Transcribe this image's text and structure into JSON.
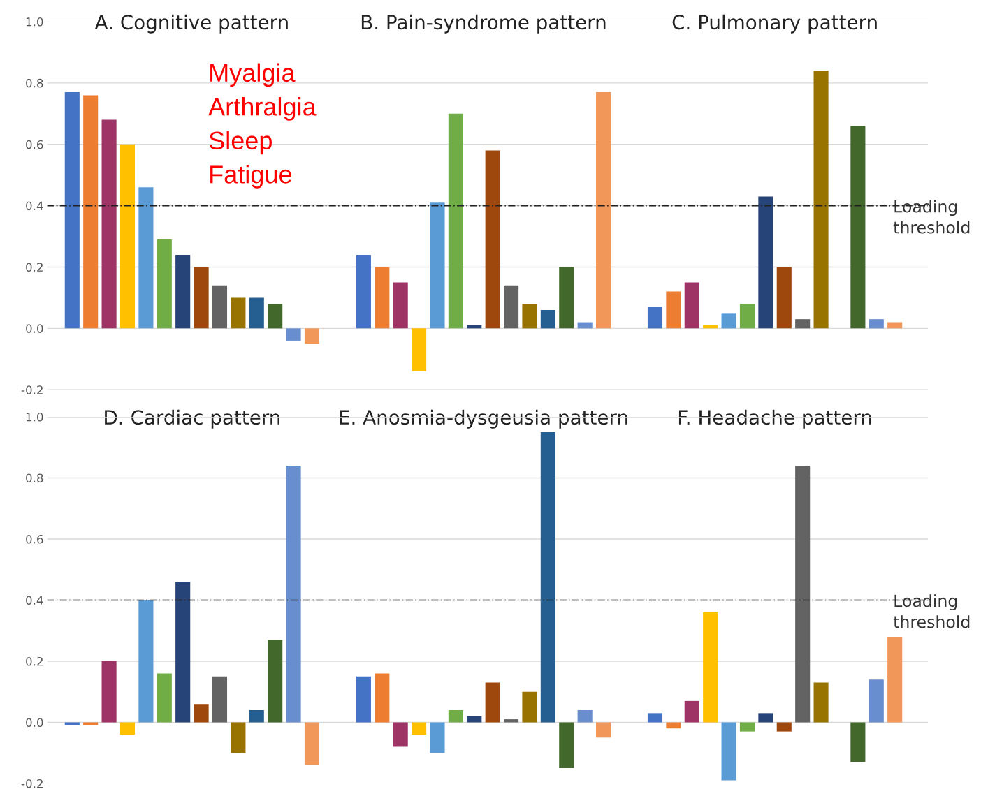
{
  "chart_data": [
    {
      "type": "bar",
      "categories": [
        "A. Cognitive pattern",
        "B. Pain-syndrome pattern",
        "C. Pulmonary pattern"
      ],
      "series": [
        {
          "color": "#4472c4",
          "values": [
            0.77,
            0.24,
            0.07
          ]
        },
        {
          "color": "#ed7d31",
          "values": [
            0.76,
            0.2,
            0.12
          ]
        },
        {
          "color": "#9e3366",
          "values": [
            0.68,
            0.15,
            0.15
          ]
        },
        {
          "color": "#ffc000",
          "values": [
            0.6,
            -0.14,
            0.01
          ]
        },
        {
          "color": "#5b9bd5",
          "values": [
            0.46,
            0.41,
            0.05
          ]
        },
        {
          "color": "#70ad47",
          "values": [
            0.29,
            0.7,
            0.08
          ]
        },
        {
          "color": "#264478",
          "values": [
            0.24,
            0.01,
            0.43
          ]
        },
        {
          "color": "#9e480e",
          "values": [
            0.2,
            0.58,
            0.2
          ]
        },
        {
          "color": "#636363",
          "values": [
            0.14,
            0.14,
            0.03
          ]
        },
        {
          "color": "#997300",
          "values": [
            0.1,
            0.08,
            0.84
          ]
        },
        {
          "color": "#255e91",
          "values": [
            0.1,
            0.06,
            0.0
          ]
        },
        {
          "color": "#43682b",
          "values": [
            0.08,
            0.2,
            0.66
          ]
        },
        {
          "color": "#698ed0",
          "values": [
            -0.04,
            0.02,
            0.03
          ]
        },
        {
          "color": "#f1975a",
          "values": [
            -0.05,
            0.77,
            0.02
          ]
        }
      ],
      "ylim": [
        -0.2,
        1.0
      ],
      "yticks": [
        {
          "value": -0.2,
          "label": "-0.2"
        },
        {
          "value": 0,
          "label": "0.0"
        },
        {
          "value": 0.2,
          "label": "0.2"
        },
        {
          "value": 0.4,
          "label": "0.4"
        },
        {
          "value": 0.6,
          "label": "0.6"
        },
        {
          "value": 0.8,
          "label": "0.8"
        },
        {
          "value": 1.0,
          "label": "1.0"
        }
      ],
      "grid": "y",
      "ref_lines": [
        {
          "axis": "y",
          "value": 0.4,
          "label": "Loading threshold",
          "color": "#222222",
          "line_style": "dashed"
        }
      ],
      "annotations": [
        "Myalgia",
        "Arthralgia",
        "Sleep",
        "Fatigue"
      ]
    },
    {
      "type": "bar",
      "categories": [
        "D. Cardiac pattern",
        "E. Anosmia-dysgeusia pattern",
        "F. Headache pattern"
      ],
      "series": [
        {
          "color": "#4472c4",
          "values": [
            -0.01,
            0.15,
            0.03
          ]
        },
        {
          "color": "#ed7d31",
          "values": [
            -0.01,
            0.16,
            -0.02
          ]
        },
        {
          "color": "#9e3366",
          "values": [
            0.2,
            -0.08,
            0.07
          ]
        },
        {
          "color": "#ffc000",
          "values": [
            -0.04,
            -0.04,
            0.36
          ]
        },
        {
          "color": "#5b9bd5",
          "values": [
            0.4,
            -0.1,
            -0.19
          ]
        },
        {
          "color": "#70ad47",
          "values": [
            0.16,
            0.04,
            -0.03
          ]
        },
        {
          "color": "#264478",
          "values": [
            0.46,
            0.02,
            0.03
          ]
        },
        {
          "color": "#9e480e",
          "values": [
            0.06,
            0.13,
            -0.03
          ]
        },
        {
          "color": "#636363",
          "values": [
            0.15,
            0.01,
            0.84
          ]
        },
        {
          "color": "#997300",
          "values": [
            -0.1,
            0.1,
            0.13
          ]
        },
        {
          "color": "#255e91",
          "values": [
            0.04,
            0.95,
            0.0
          ]
        },
        {
          "color": "#43682b",
          "values": [
            0.27,
            -0.15,
            -0.13
          ]
        },
        {
          "color": "#698ed0",
          "values": [
            0.84,
            0.04,
            0.14
          ]
        },
        {
          "color": "#f1975a",
          "values": [
            -0.14,
            -0.05,
            0.28
          ]
        }
      ],
      "ylim": [
        -0.2,
        1.0
      ],
      "yticks": [
        {
          "value": -0.2,
          "label": "-0.2"
        },
        {
          "value": 0,
          "label": "0.0"
        },
        {
          "value": 0.2,
          "label": "0.2"
        },
        {
          "value": 0.4,
          "label": "0.4"
        },
        {
          "value": 0.6,
          "label": "0.6"
        },
        {
          "value": 0.8,
          "label": "0.8"
        },
        {
          "value": 1.0,
          "label": "1.0"
        }
      ],
      "grid": "y",
      "ref_lines": [
        {
          "axis": "y",
          "value": 0.4,
          "label": "Loading threshold",
          "color": "#222222",
          "line_style": "dashed"
        }
      ]
    }
  ]
}
